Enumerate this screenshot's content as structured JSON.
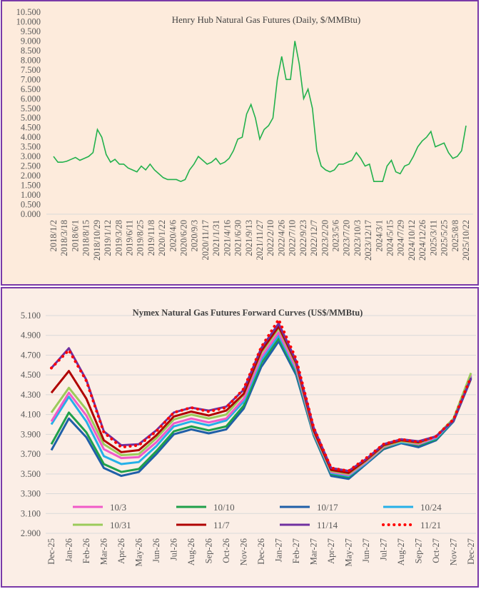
{
  "chart_data": [
    {
      "type": "line",
      "title": "Henry Hub Natural Gas Futures (Daily, $/MMBtu)",
      "xlabel": "",
      "ylabel": "",
      "ylim": [
        0,
        10.5
      ],
      "yticks": [
        "0.000",
        "0.500",
        "1.000",
        "1.500",
        "2.000",
        "2.500",
        "3.000",
        "3.500",
        "4.000",
        "4.500",
        "5.000",
        "5.500",
        "6.000",
        "6.500",
        "7.000",
        "7.500",
        "8.000",
        "8.500",
        "9.000",
        "9.500",
        "10.000",
        "10.500"
      ],
      "xtick_labels": [
        "2018/1/2",
        "2018/3/18",
        "2018/6/1",
        "2018/8/15",
        "2018/10/29",
        "2019/1/12",
        "2019/3/28",
        "2019/6/11",
        "2019/8/25",
        "2019/11/8",
        "2020/1/22",
        "2020/4/6",
        "2020/6/20",
        "2020/9/3",
        "2020/11/17",
        "2021/1/31",
        "2021/4/16",
        "2021/6/30",
        "2021/9/13",
        "2021/11/27",
        "2022/2/10",
        "2022/4/26",
        "2022/7/10",
        "2022/9/23",
        "2022/12/7",
        "2023/2/20",
        "2023/5/6",
        "2023/7/20",
        "2023/10/3",
        "2023/12/17",
        "2024/3/1",
        "2024/5/15",
        "2024/7/29",
        "2024/10/12",
        "2024/12/26",
        "2025/3/11",
        "2025/5/25",
        "2025/8/8",
        "2025/10/22"
      ],
      "grid": false,
      "series": [
        {
          "name": "Henry Hub",
          "color": "#22b14c",
          "x_start": "2018-01",
          "x_step": "month",
          "values": [
            3.0,
            2.7,
            2.7,
            2.75,
            2.85,
            2.95,
            2.8,
            2.9,
            3.0,
            3.2,
            4.4,
            4.0,
            3.1,
            2.7,
            2.85,
            2.6,
            2.6,
            2.4,
            2.3,
            2.2,
            2.5,
            2.3,
            2.6,
            2.3,
            2.1,
            1.9,
            1.8,
            1.8,
            1.8,
            1.7,
            1.8,
            2.3,
            2.6,
            3.0,
            2.8,
            2.6,
            2.7,
            2.9,
            2.6,
            2.7,
            2.9,
            3.3,
            3.9,
            4.0,
            5.2,
            5.7,
            5.0,
            3.9,
            4.4,
            4.6,
            5.0,
            7.0,
            8.2,
            7.0,
            7.0,
            9.0,
            7.8,
            6.0,
            6.5,
            5.5,
            3.3,
            2.5,
            2.3,
            2.2,
            2.3,
            2.6,
            2.6,
            2.7,
            2.8,
            3.2,
            2.9,
            2.5,
            2.6,
            1.7,
            1.7,
            1.7,
            2.5,
            2.8,
            2.2,
            2.1,
            2.5,
            2.6,
            3.0,
            3.5,
            3.8,
            4.0,
            4.3,
            3.5,
            3.6,
            3.7,
            3.2,
            2.9,
            3.0,
            3.3,
            4.6
          ]
        }
      ]
    },
    {
      "type": "line",
      "title": "Nymex Natural Gas Futures Forward  Curves (US$/MMBtu)",
      "xlabel": "",
      "ylabel": "",
      "ylim": [
        2.9,
        5.1
      ],
      "yticks": [
        "2.900",
        "3.100",
        "3.300",
        "3.500",
        "3.700",
        "3.900",
        "4.100",
        "4.300",
        "4.500",
        "4.700",
        "4.900",
        "5.100"
      ],
      "categories": [
        "Dec-25",
        "Jan-26",
        "Feb-26",
        "Mar-26",
        "Apr-26",
        "May-26",
        "Jun-26",
        "Jul-26",
        "Aug-26",
        "Sep-26",
        "Oct-26",
        "Nov-26",
        "Dec-26",
        "Jan-27",
        "Feb-27",
        "Mar-27",
        "Apr-27",
        "May-27",
        "Jun-27",
        "Jul-27",
        "Aug-27",
        "Sep-27",
        "Oct-27",
        "Nov-27",
        "Dec-27"
      ],
      "grid": true,
      "legend": "bottom-inside",
      "series": [
        {
          "name": "10/3",
          "color": "#f05ac8",
          "dotted": false,
          "values": [
            4.03,
            4.32,
            4.09,
            3.75,
            3.66,
            3.67,
            3.82,
            4.01,
            4.06,
            4.02,
            4.06,
            4.26,
            4.68,
            4.93,
            4.57,
            3.92,
            3.52,
            3.49,
            3.62,
            3.77,
            3.83,
            3.8,
            3.87,
            4.05,
            4.5
          ]
        },
        {
          "name": "10/10",
          "color": "#1fa04a",
          "dotted": false,
          "values": [
            3.8,
            4.12,
            3.92,
            3.6,
            3.52,
            3.55,
            3.73,
            3.93,
            3.98,
            3.94,
            3.98,
            4.19,
            4.62,
            4.87,
            4.53,
            3.9,
            3.5,
            3.47,
            3.61,
            3.76,
            3.82,
            3.79,
            3.85,
            4.04,
            4.48
          ]
        },
        {
          "name": "10/17",
          "color": "#1f5fa8",
          "dotted": false,
          "values": [
            3.74,
            4.06,
            3.87,
            3.56,
            3.48,
            3.52,
            3.7,
            3.9,
            3.95,
            3.91,
            3.95,
            4.16,
            4.58,
            4.84,
            4.5,
            3.89,
            3.48,
            3.45,
            3.6,
            3.75,
            3.81,
            3.77,
            3.84,
            4.03,
            4.46
          ]
        },
        {
          "name": "10/24",
          "color": "#25b0e8",
          "dotted": false,
          "values": [
            4.0,
            4.28,
            4.03,
            3.68,
            3.6,
            3.62,
            3.78,
            3.98,
            4.03,
            3.99,
            4.04,
            4.23,
            4.65,
            4.9,
            4.55,
            3.91,
            3.51,
            3.48,
            3.61,
            3.77,
            3.82,
            3.8,
            3.86,
            4.04,
            4.49
          ]
        },
        {
          "name": "10/31",
          "color": "#9bcb5a",
          "dotted": false,
          "values": [
            4.12,
            4.37,
            4.15,
            3.8,
            3.69,
            3.7,
            3.86,
            4.05,
            4.1,
            4.06,
            4.1,
            4.3,
            4.72,
            4.97,
            4.6,
            3.93,
            3.53,
            3.5,
            3.63,
            3.78,
            3.83,
            3.81,
            3.88,
            4.06,
            4.52
          ]
        },
        {
          "name": "11/7",
          "color": "#b00000",
          "dotted": false,
          "values": [
            4.32,
            4.54,
            4.26,
            3.84,
            3.72,
            3.74,
            3.89,
            4.08,
            4.13,
            4.09,
            4.14,
            4.31,
            4.74,
            4.99,
            4.62,
            3.94,
            3.54,
            3.51,
            3.64,
            3.79,
            3.84,
            3.82,
            3.88,
            4.04,
            4.47
          ]
        },
        {
          "name": "11/14",
          "color": "#7030a0",
          "dotted": false,
          "values": [
            4.57,
            4.77,
            4.45,
            3.93,
            3.79,
            3.8,
            3.94,
            4.12,
            4.17,
            4.14,
            4.18,
            4.35,
            4.77,
            5.02,
            4.64,
            3.97,
            3.56,
            3.53,
            3.65,
            3.8,
            3.85,
            3.83,
            3.88,
            4.04,
            4.47
          ]
        },
        {
          "name": "11/21",
          "color": "#ff0000",
          "dotted": true,
          "values": [
            4.57,
            4.75,
            4.44,
            3.92,
            3.77,
            3.79,
            3.93,
            4.12,
            4.17,
            4.13,
            4.17,
            4.36,
            4.78,
            5.06,
            4.66,
            3.97,
            3.56,
            3.53,
            3.66,
            3.8,
            3.85,
            3.82,
            3.88,
            4.05,
            4.48
          ]
        }
      ],
      "draw_order": [
        "10/17",
        "10/10",
        "10/24",
        "10/3",
        "10/31",
        "11/7",
        "11/14",
        "11/21"
      ]
    }
  ]
}
